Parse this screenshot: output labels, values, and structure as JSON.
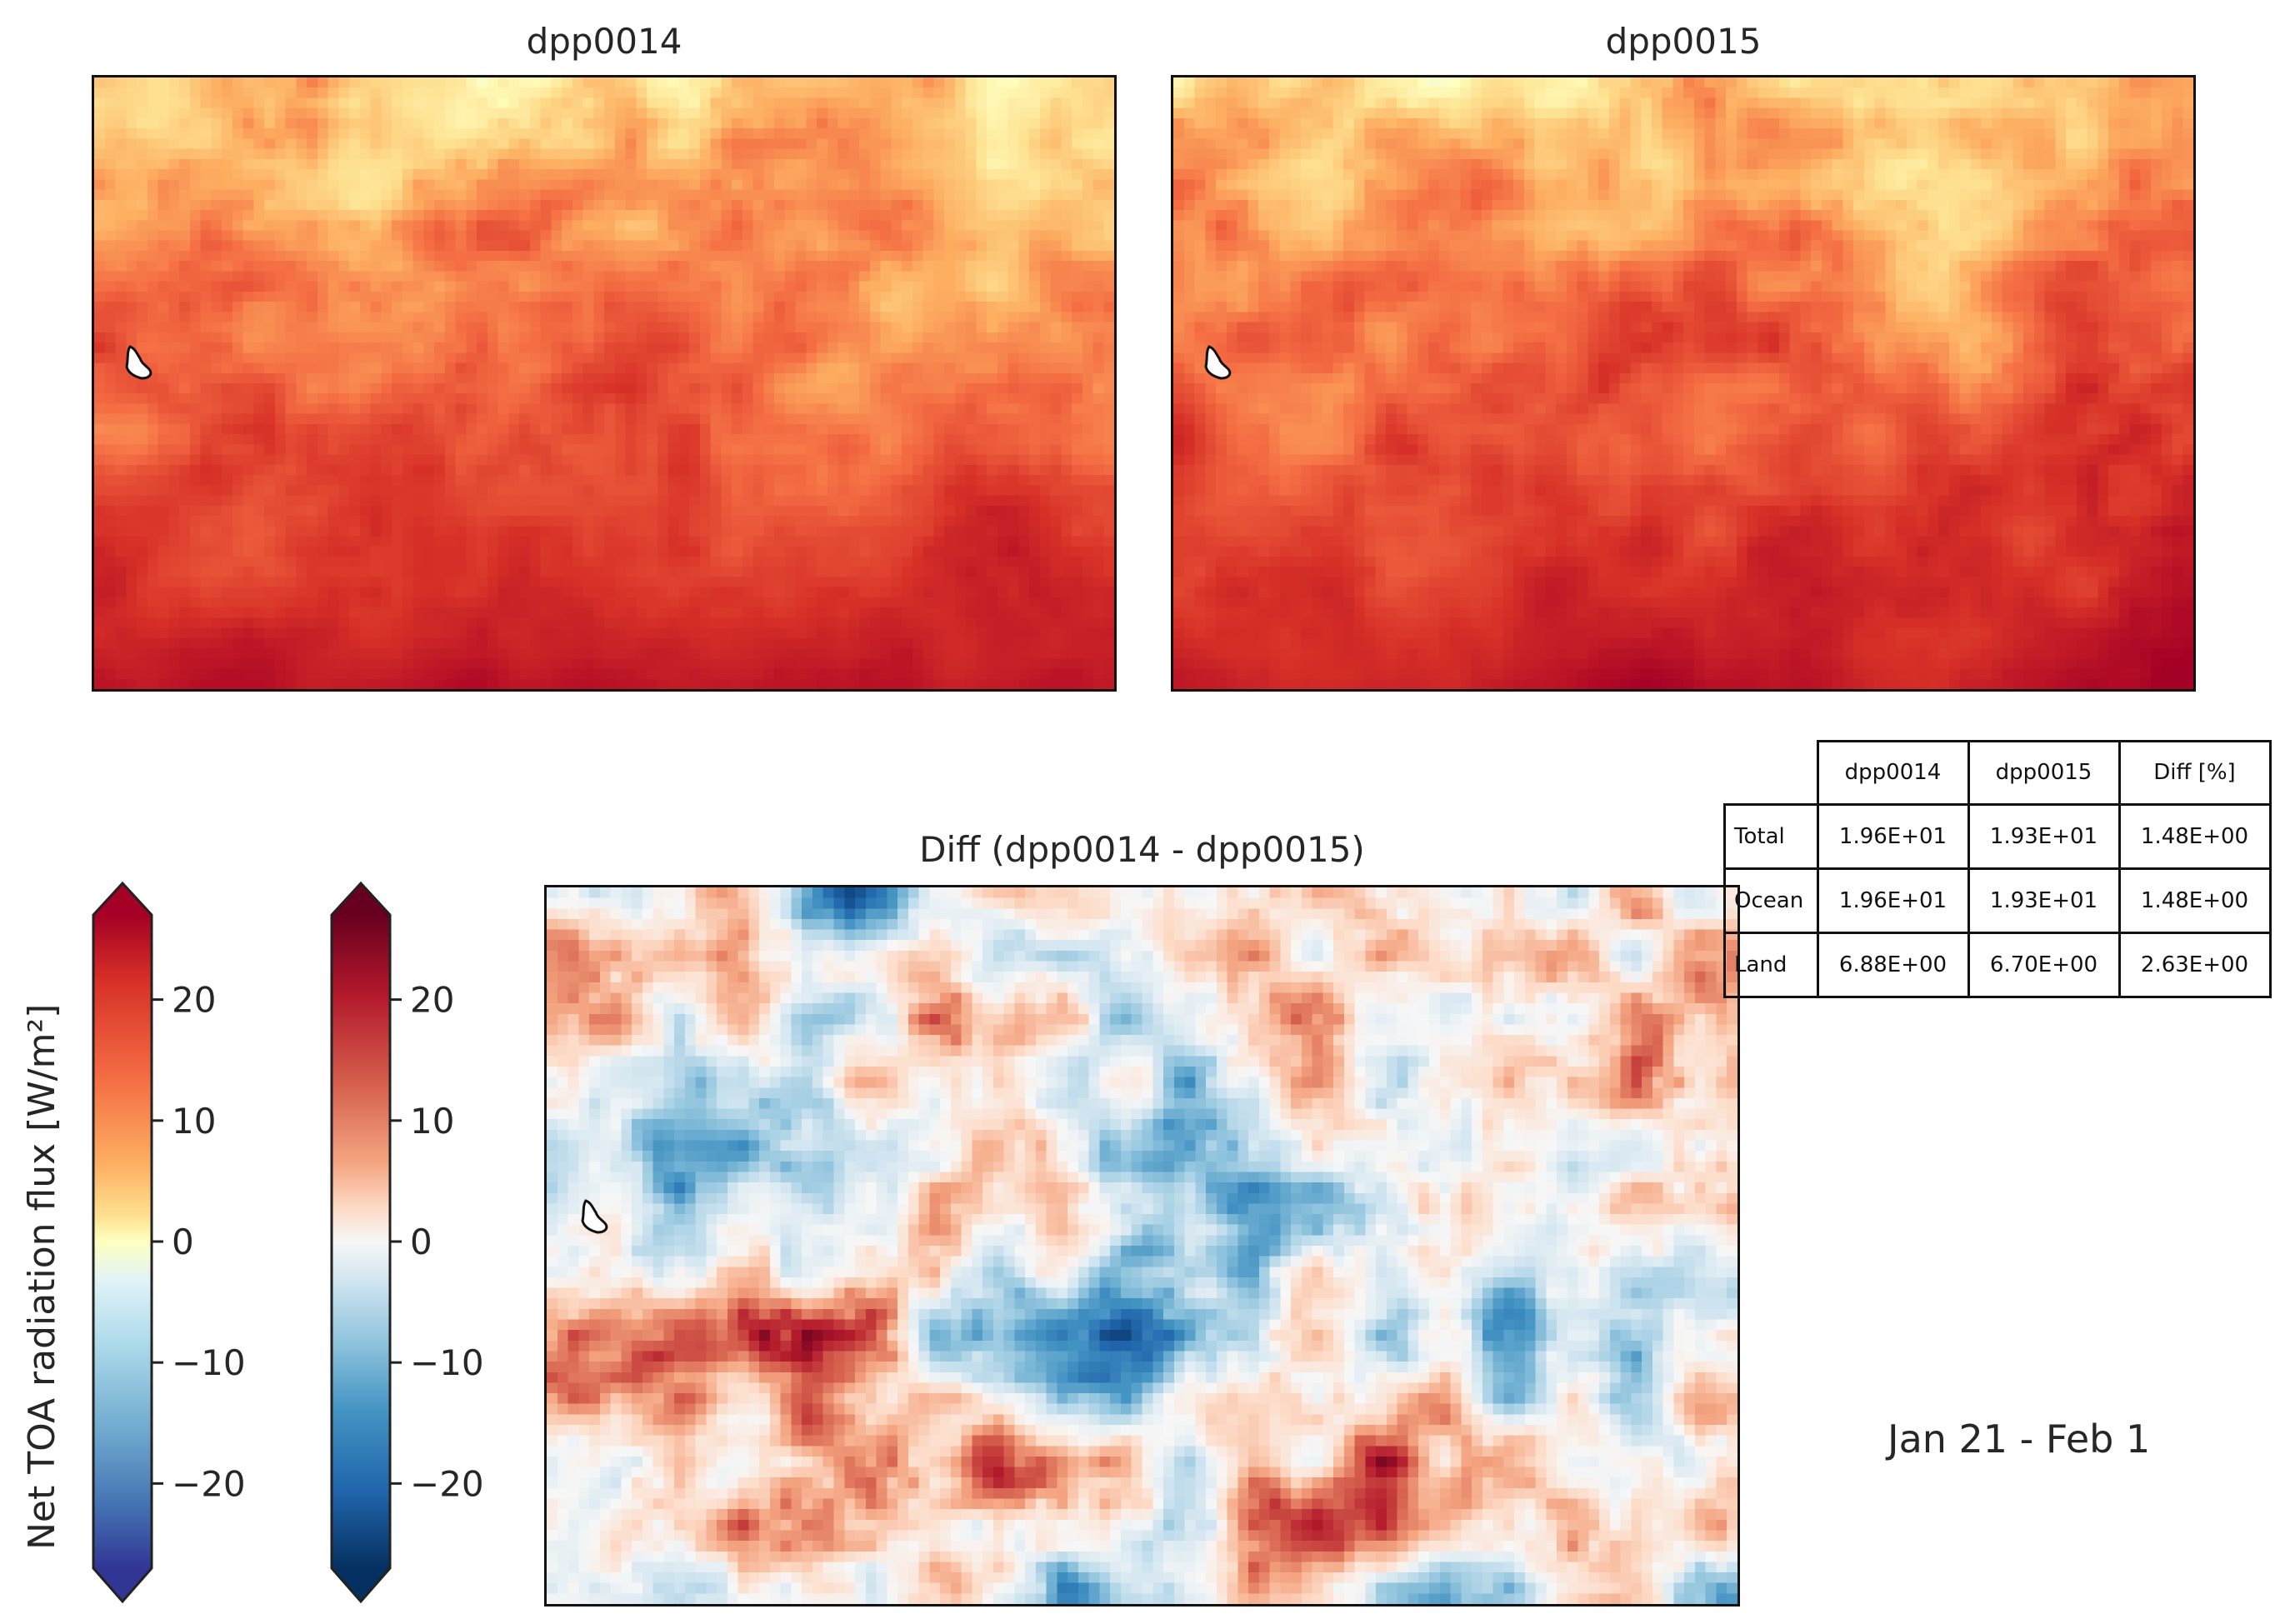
{
  "panels": {
    "top_left_title": "dpp0014",
    "top_right_title": "dpp0015",
    "diff_title": "Diff (dpp0014 - dpp0015)"
  },
  "colorbar": {
    "label": "Net TOA radiation flux [W/m²]",
    "left_ticks": [
      "20",
      "10",
      "0",
      "−10",
      "−20"
    ],
    "right_ticks": [
      "20",
      "10",
      "0",
      "−10",
      "−20"
    ],
    "left_colormap": "RdYlBu_r",
    "right_colormap": "RdBu_r"
  },
  "table": {
    "headers": [
      "",
      "dpp0014",
      "dpp0015",
      "Diff [%]"
    ],
    "rows": [
      {
        "label": "Total",
        "values": [
          "1.96E+01",
          "1.93E+01",
          "1.48E+00"
        ]
      },
      {
        "label": "Ocean",
        "values": [
          "1.96E+01",
          "1.93E+01",
          "1.48E+00"
        ]
      },
      {
        "label": "Land",
        "values": [
          "6.88E+00",
          "6.70E+00",
          "2.63E+00"
        ]
      }
    ]
  },
  "date_range": "Jan 21 - Feb  1",
  "chart_data": [
    {
      "type": "heatmap",
      "title": "dpp0014",
      "colormap": "RdYlBu_r",
      "vmin": -27,
      "vmax": 27,
      "description_field": "Net TOA radiation flux [W/m²]"
    },
    {
      "type": "heatmap",
      "title": "dpp0015",
      "colormap": "RdYlBu_r",
      "vmin": -27,
      "vmax": 27
    },
    {
      "type": "heatmap",
      "title": "Diff (dpp0014 - dpp0015)",
      "colormap": "RdBu_r",
      "vmin": -27,
      "vmax": 27
    }
  ]
}
